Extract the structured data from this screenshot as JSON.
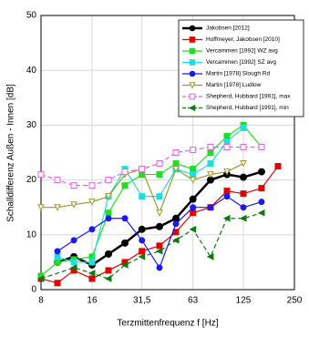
{
  "chart_data": {
    "type": "line",
    "xlabel": "Terzmittenfrequenz f [Hz]",
    "ylabel": "Schalldifferenz Außen - Innen [dB]",
    "xscale": "log",
    "xlim": [
      8,
      250
    ],
    "xticks": [
      8,
      16,
      {
        "value": 31.5,
        "label": "31,5"
      },
      63,
      125,
      250
    ],
    "ylim": [
      0,
      50
    ],
    "yticks": [
      0,
      10,
      20,
      30,
      40,
      50
    ],
    "grid": true,
    "legend": "upper right",
    "series": [
      {
        "name": "Jakobsen [2012]",
        "color": "#000000",
        "marker": "circle",
        "filled": true,
        "dash": false,
        "width": 2.5,
        "x": [
          10,
          12.5,
          16,
          20,
          25,
          31.5,
          40,
          50,
          63,
          80,
          100,
          125,
          160
        ],
        "values": [
          5,
          6,
          4.5,
          6.5,
          8.5,
          11,
          11.5,
          13,
          16.5,
          20,
          21,
          20.5,
          21.5
        ]
      },
      {
        "name": "Hoffmeyer, Jakobsen [2010]",
        "color": "#e00000",
        "marker": "square",
        "filled": true,
        "dash": false,
        "width": 1.2,
        "x": [
          8,
          10,
          12.5,
          16,
          20,
          25,
          31.5,
          40,
          50,
          63,
          80,
          100,
          125,
          160,
          200
        ],
        "values": [
          2,
          1.2,
          3.5,
          2,
          3.5,
          5,
          7,
          8,
          10.5,
          14,
          15,
          18,
          17.5,
          18.5,
          22.5
        ]
      },
      {
        "name": "Vercammen [1992] WZ avg",
        "color": "#22dd22",
        "marker": "square",
        "filled": true,
        "dash": false,
        "width": 1.2,
        "x": [
          8,
          10,
          12.5,
          16,
          20,
          25,
          31.5,
          40,
          50,
          63,
          80,
          100,
          125,
          160
        ],
        "values": [
          2.5,
          5,
          5.5,
          6,
          14,
          19,
          21,
          21,
          23,
          22,
          25,
          28,
          30,
          26
        ]
      },
      {
        "name": "Vercammen [1992] SZ avg",
        "color": "#22dddd",
        "marker": "square",
        "filled": true,
        "dash": false,
        "width": 1.2,
        "x": [
          10,
          12.5,
          16,
          20,
          25,
          31.5,
          40,
          50,
          63,
          80,
          100,
          125
        ],
        "values": [
          6,
          5,
          5,
          17,
          22,
          17,
          17,
          22,
          21,
          23,
          27,
          29.5
        ]
      },
      {
        "name": "Martin [1978] Slough Rd",
        "color": "#1a1aee",
        "marker": "circle",
        "filled": true,
        "dash": false,
        "width": 1.2,
        "x": [
          10,
          12.5,
          16,
          20,
          25,
          31.5,
          40,
          50,
          63,
          80,
          100,
          125,
          160
        ],
        "values": [
          7,
          9,
          11,
          13,
          13,
          9,
          4,
          12,
          15,
          15,
          17,
          15,
          16
        ]
      },
      {
        "name": "Martin [1978] Ludlow",
        "color": "#999933",
        "marker": "tri-down",
        "filled": false,
        "dash": false,
        "width": 1.2,
        "x": [
          8,
          10,
          12.5,
          16,
          20,
          25,
          31.5,
          40,
          50,
          63,
          80,
          100,
          125
        ],
        "values": [
          15,
          15,
          15.5,
          16,
          17,
          21,
          22,
          14,
          22,
          20,
          21,
          21.5,
          23
        ]
      },
      {
        "name": "Shepherd, Hubbard [1991], max",
        "color": "#dd66dd",
        "marker": "square",
        "filled": false,
        "dash": true,
        "width": 1.2,
        "x": [
          8,
          10,
          12.5,
          16,
          20,
          25,
          31.5,
          40,
          50,
          63,
          80,
          100,
          125,
          160
        ],
        "values": [
          21,
          20,
          19,
          19,
          20,
          21.5,
          22,
          23,
          25,
          25.5,
          26,
          26,
          26,
          26
        ]
      },
      {
        "name": "Shepherd, Hubbard [1991], min",
        "color": "#117711",
        "marker": "tri-left",
        "filled": true,
        "dash": true,
        "width": 1.2,
        "x": [
          8,
          12.5,
          16,
          20,
          25,
          31.5,
          40,
          50,
          63,
          80,
          100,
          125,
          160
        ],
        "values": [
          2,
          4,
          3,
          2,
          4.5,
          6,
          7,
          9,
          11,
          6,
          13,
          13,
          14
        ]
      }
    ]
  }
}
